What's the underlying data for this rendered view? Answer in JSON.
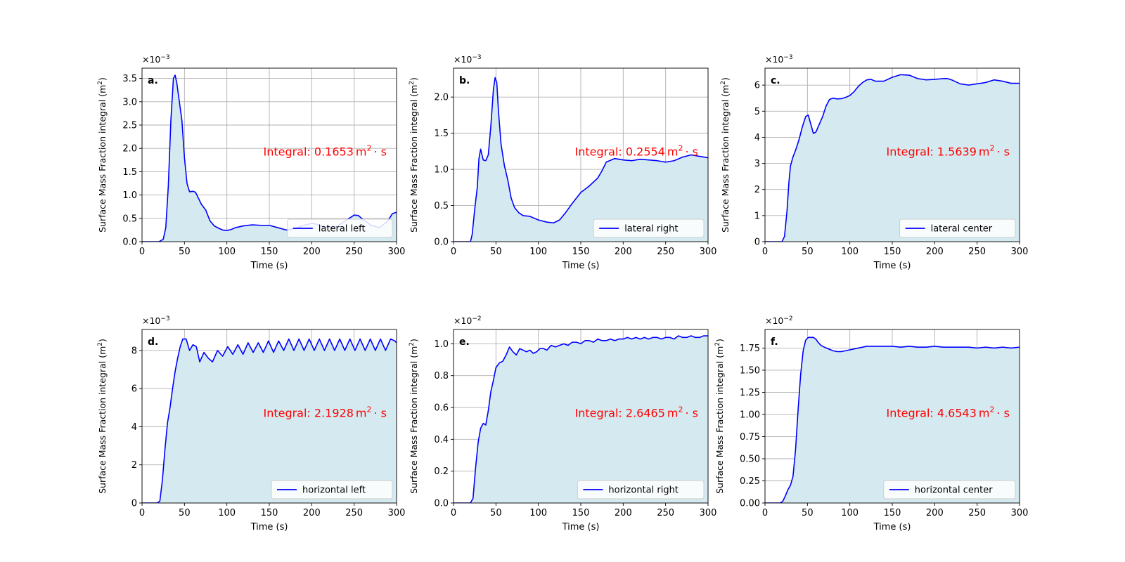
{
  "figure": {
    "background": "#ffffff",
    "line_color": "#0000ff",
    "fill_color": "#d4eaf0",
    "annotation_color": "#ff0000",
    "grid_color": "#b0b0b0"
  },
  "chart_data": [
    {
      "type": "area",
      "panel_label": "a.",
      "legend": "lateral left",
      "legend_position": "lower right",
      "annotation": {
        "prefix": "Integral: ",
        "value": "0.1653",
        "unit": "m",
        "exp": "2",
        "suffix": "· s"
      },
      "xlabel": "Time (s)",
      "ylabel": "Surface Mass Fraction integral (m",
      "ylabel_exp": "2",
      "ylabel_close": ")",
      "offset": {
        "base": "×10",
        "exp": "−3"
      },
      "xlim": [
        0,
        300
      ],
      "ylim": [
        0,
        3.72
      ],
      "grid": true,
      "xticks": [
        0,
        50,
        100,
        150,
        200,
        250,
        300
      ],
      "xtick_labels": [
        "0",
        "50",
        "100",
        "150",
        "200",
        "250",
        "300"
      ],
      "yticks": [
        0,
        0.5,
        1.0,
        1.5,
        2.0,
        2.5,
        3.0,
        3.5
      ],
      "ytick_labels": [
        "0.0",
        "0.5",
        "1.0",
        "1.5",
        "2.0",
        "2.5",
        "3.0",
        "3.5"
      ],
      "x": [
        0,
        20,
        25,
        28,
        31,
        34,
        37,
        39,
        41,
        44,
        47,
        50,
        53,
        56,
        60,
        63,
        66,
        70,
        75,
        80,
        85,
        90,
        95,
        100,
        105,
        110,
        120,
        130,
        140,
        150,
        160,
        170,
        180,
        190,
        200,
        205,
        210,
        220,
        230,
        240,
        250,
        255,
        260,
        270,
        280,
        290,
        295,
        300
      ],
      "y": [
        0,
        0,
        0.05,
        0.3,
        1.2,
        2.6,
        3.5,
        3.57,
        3.4,
        3.0,
        2.6,
        1.8,
        1.25,
        1.07,
        1.08,
        1.06,
        0.95,
        0.8,
        0.68,
        0.45,
        0.34,
        0.29,
        0.25,
        0.24,
        0.26,
        0.3,
        0.34,
        0.36,
        0.35,
        0.35,
        0.3,
        0.25,
        0.28,
        0.35,
        0.39,
        0.38,
        0.34,
        0.3,
        0.33,
        0.45,
        0.57,
        0.56,
        0.48,
        0.35,
        0.3,
        0.45,
        0.6,
        0.63
      ]
    },
    {
      "type": "area",
      "panel_label": "b.",
      "legend": "lateral right",
      "legend_position": "lower right",
      "annotation": {
        "prefix": "Integral: ",
        "value": "0.2554",
        "unit": "m",
        "exp": "2",
        "suffix": "· s"
      },
      "xlabel": "Time (s)",
      "ylabel": "Surface Mass Fraction integral (m",
      "ylabel_exp": "2",
      "ylabel_close": ")",
      "offset": {
        "base": "×10",
        "exp": "−3"
      },
      "xlim": [
        0,
        300
      ],
      "ylim": [
        0,
        2.4
      ],
      "grid": true,
      "xticks": [
        0,
        50,
        100,
        150,
        200,
        250,
        300
      ],
      "xtick_labels": [
        "0",
        "50",
        "100",
        "150",
        "200",
        "250",
        "300"
      ],
      "yticks": [
        0,
        0.5,
        1.0,
        1.5,
        2.0
      ],
      "ytick_labels": [
        "0.0",
        "0.5",
        "1.0",
        "1.5",
        "2.0"
      ],
      "x": [
        0,
        20,
        22,
        25,
        28,
        30,
        32,
        35,
        38,
        41,
        44,
        47,
        49,
        51,
        53,
        56,
        60,
        64,
        68,
        72,
        77,
        82,
        90,
        100,
        110,
        118,
        125,
        132,
        140,
        150,
        160,
        170,
        175,
        180,
        190,
        200,
        210,
        220,
        230,
        240,
        250,
        260,
        270,
        280,
        290,
        300
      ],
      "y": [
        0,
        0,
        0.1,
        0.45,
        0.75,
        1.15,
        1.28,
        1.13,
        1.12,
        1.2,
        1.6,
        2.1,
        2.27,
        2.2,
        1.8,
        1.35,
        1.05,
        0.85,
        0.6,
        0.47,
        0.4,
        0.36,
        0.35,
        0.3,
        0.27,
        0.26,
        0.3,
        0.4,
        0.53,
        0.68,
        0.77,
        0.88,
        0.98,
        1.1,
        1.15,
        1.13,
        1.12,
        1.14,
        1.13,
        1.12,
        1.1,
        1.12,
        1.17,
        1.2,
        1.18,
        1.16
      ]
    },
    {
      "type": "area",
      "panel_label": "c.",
      "legend": "lateral center",
      "legend_position": "lower right",
      "annotation": {
        "prefix": "Integral: ",
        "value": "1.5639",
        "unit": "m",
        "exp": "2",
        "suffix": "· s"
      },
      "xlabel": "Time (s)",
      "ylabel": "Surface Mass Fraction integral (m",
      "ylabel_exp": "2",
      "ylabel_close": ")",
      "offset": {
        "base": "×10",
        "exp": "−3"
      },
      "xlim": [
        0,
        300
      ],
      "ylim": [
        0,
        6.65
      ],
      "grid": true,
      "xticks": [
        0,
        50,
        100,
        150,
        200,
        250,
        300
      ],
      "xtick_labels": [
        "0",
        "50",
        "100",
        "150",
        "200",
        "250",
        "300"
      ],
      "yticks": [
        0,
        1,
        2,
        3,
        4,
        5,
        6
      ],
      "ytick_labels": [
        "0",
        "1",
        "2",
        "3",
        "4",
        "5",
        "6"
      ],
      "x": [
        0,
        20,
        23,
        26,
        28,
        30,
        33,
        36,
        40,
        44,
        48,
        51,
        54,
        57,
        60,
        64,
        68,
        72,
        76,
        80,
        85,
        90,
        95,
        100,
        105,
        110,
        115,
        120,
        125,
        130,
        140,
        150,
        160,
        170,
        180,
        190,
        200,
        210,
        215,
        220,
        230,
        240,
        250,
        260,
        270,
        280,
        290,
        300
      ],
      "y": [
        0,
        0,
        0.2,
        1.2,
        2.2,
        2.9,
        3.25,
        3.5,
        3.9,
        4.4,
        4.8,
        4.85,
        4.5,
        4.15,
        4.2,
        4.5,
        4.8,
        5.2,
        5.45,
        5.5,
        5.47,
        5.48,
        5.53,
        5.6,
        5.75,
        5.95,
        6.1,
        6.2,
        6.22,
        6.15,
        6.15,
        6.3,
        6.4,
        6.38,
        6.25,
        6.2,
        6.22,
        6.25,
        6.25,
        6.2,
        6.05,
        6.0,
        6.05,
        6.1,
        6.2,
        6.15,
        6.07,
        6.07
      ]
    },
    {
      "type": "area",
      "panel_label": "d.",
      "legend": "horizontal left",
      "legend_position": "lower right",
      "annotation": {
        "prefix": "Integral: ",
        "value": "2.1928",
        "unit": "m",
        "exp": "2",
        "suffix": "· s"
      },
      "xlabel": "Time (s)",
      "ylabel": "Surface Mass Fraction integral (m",
      "ylabel_exp": "2",
      "ylabel_close": ")",
      "offset": {
        "base": "×10",
        "exp": "−3"
      },
      "xlim": [
        0,
        300
      ],
      "ylim": [
        0,
        9.1
      ],
      "grid": true,
      "xticks": [
        0,
        50,
        100,
        150,
        200,
        250,
        300
      ],
      "xtick_labels": [
        "0",
        "50",
        "100",
        "150",
        "200",
        "250",
        "300"
      ],
      "yticks": [
        0,
        2,
        4,
        6,
        8
      ],
      "ytick_labels": [
        "0",
        "2",
        "4",
        "6",
        "8"
      ],
      "x": [
        0,
        18,
        21,
        24,
        27,
        30,
        33,
        36,
        39,
        42,
        45,
        48,
        52,
        56,
        60,
        64,
        68,
        73,
        78,
        83,
        89,
        95,
        101,
        107,
        113,
        119,
        125,
        131,
        137,
        143,
        149,
        155,
        161,
        167,
        173,
        179,
        185,
        191,
        197,
        203,
        209,
        215,
        221,
        227,
        233,
        239,
        245,
        251,
        257,
        263,
        269,
        275,
        281,
        287,
        293,
        298,
        300
      ],
      "y": [
        0,
        0,
        0.1,
        1.2,
        2.8,
        4.2,
        5.0,
        6.0,
        6.9,
        7.6,
        8.2,
        8.6,
        8.6,
        8.0,
        8.3,
        8.2,
        7.4,
        7.9,
        7.6,
        7.4,
        8.0,
        7.7,
        8.2,
        7.8,
        8.3,
        7.8,
        8.4,
        7.9,
        8.4,
        7.9,
        8.5,
        7.9,
        8.5,
        8.0,
        8.6,
        8.0,
        8.6,
        8.0,
        8.6,
        8.0,
        8.6,
        8.0,
        8.6,
        8.0,
        8.6,
        8.0,
        8.6,
        8.0,
        8.6,
        8.0,
        8.6,
        8.0,
        8.6,
        8.0,
        8.6,
        8.5,
        8.4
      ]
    },
    {
      "type": "area",
      "panel_label": "e.",
      "legend": "horizontal right",
      "legend_position": "lower right",
      "annotation": {
        "prefix": "Integral: ",
        "value": "2.6465",
        "unit": "m",
        "exp": "2",
        "suffix": "· s"
      },
      "xlabel": "Time (s)",
      "ylabel": "Surface Mass Fraction integral (m",
      "ylabel_exp": "2",
      "ylabel_close": ")",
      "offset": {
        "base": "×10",
        "exp": "−2"
      },
      "xlim": [
        0,
        300
      ],
      "ylim": [
        0,
        1.09
      ],
      "grid": true,
      "xticks": [
        0,
        50,
        100,
        150,
        200,
        250,
        300
      ],
      "xtick_labels": [
        "0",
        "50",
        "100",
        "150",
        "200",
        "250",
        "300"
      ],
      "yticks": [
        0,
        0.2,
        0.4,
        0.6,
        0.8,
        1.0
      ],
      "ytick_labels": [
        "0.0",
        "0.2",
        "0.4",
        "0.6",
        "0.8",
        "1.0"
      ],
      "x": [
        0,
        20,
        23,
        26,
        29,
        32,
        35,
        38,
        41,
        44,
        47,
        50,
        54,
        58,
        62,
        66,
        70,
        74,
        78,
        82,
        86,
        90,
        94,
        98,
        102,
        106,
        110,
        115,
        120,
        125,
        130,
        135,
        140,
        145,
        150,
        155,
        160,
        165,
        170,
        175,
        180,
        185,
        190,
        195,
        200,
        205,
        210,
        215,
        220,
        225,
        230,
        235,
        240,
        245,
        250,
        255,
        260,
        265,
        270,
        275,
        280,
        285,
        290,
        295,
        300
      ],
      "y": [
        0,
        0,
        0.03,
        0.22,
        0.38,
        0.47,
        0.5,
        0.49,
        0.58,
        0.7,
        0.77,
        0.85,
        0.88,
        0.89,
        0.93,
        0.98,
        0.95,
        0.93,
        0.97,
        0.96,
        0.95,
        0.96,
        0.94,
        0.95,
        0.97,
        0.97,
        0.96,
        0.99,
        0.98,
        0.99,
        1.0,
        0.99,
        1.01,
        1.01,
        1.0,
        1.02,
        1.02,
        1.01,
        1.03,
        1.02,
        1.02,
        1.03,
        1.02,
        1.03,
        1.03,
        1.04,
        1.03,
        1.04,
        1.03,
        1.04,
        1.03,
        1.04,
        1.04,
        1.03,
        1.04,
        1.04,
        1.03,
        1.05,
        1.04,
        1.04,
        1.05,
        1.04,
        1.04,
        1.05,
        1.05
      ]
    },
    {
      "type": "area",
      "panel_label": "f.",
      "legend": "horizontal center",
      "legend_position": "lower right",
      "annotation": {
        "prefix": "Integral: ",
        "value": "4.6543",
        "unit": "m",
        "exp": "2",
        "suffix": "· s"
      },
      "xlabel": "Time (s)",
      "ylabel": "Surface Mass Fraction integral (m",
      "ylabel_exp": "2",
      "ylabel_close": ")",
      "offset": {
        "base": "×10",
        "exp": "−2"
      },
      "xlim": [
        0,
        300
      ],
      "ylim": [
        0,
        1.96
      ],
      "grid": true,
      "xticks": [
        0,
        50,
        100,
        150,
        200,
        250,
        300
      ],
      "xtick_labels": [
        "0",
        "50",
        "100",
        "150",
        "200",
        "250",
        "300"
      ],
      "yticks": [
        0,
        0.25,
        0.5,
        0.75,
        1.0,
        1.25,
        1.5,
        1.75
      ],
      "ytick_labels": [
        "0.00",
        "0.25",
        "0.50",
        "0.75",
        "1.00",
        "1.25",
        "1.50",
        "1.75"
      ],
      "x": [
        0,
        18,
        21,
        24,
        27,
        30,
        33,
        36,
        39,
        42,
        45,
        48,
        51,
        54,
        57,
        60,
        63,
        66,
        70,
        75,
        80,
        85,
        90,
        95,
        100,
        110,
        120,
        130,
        140,
        150,
        160,
        170,
        180,
        190,
        200,
        210,
        220,
        230,
        240,
        250,
        260,
        270,
        280,
        290,
        300
      ],
      "y": [
        0,
        0,
        0.02,
        0.08,
        0.15,
        0.2,
        0.3,
        0.6,
        1.05,
        1.45,
        1.72,
        1.84,
        1.87,
        1.87,
        1.87,
        1.85,
        1.81,
        1.78,
        1.76,
        1.74,
        1.72,
        1.71,
        1.71,
        1.72,
        1.73,
        1.75,
        1.77,
        1.77,
        1.77,
        1.77,
        1.76,
        1.77,
        1.76,
        1.76,
        1.77,
        1.76,
        1.76,
        1.76,
        1.76,
        1.75,
        1.76,
        1.75,
        1.76,
        1.75,
        1.76
      ]
    }
  ]
}
